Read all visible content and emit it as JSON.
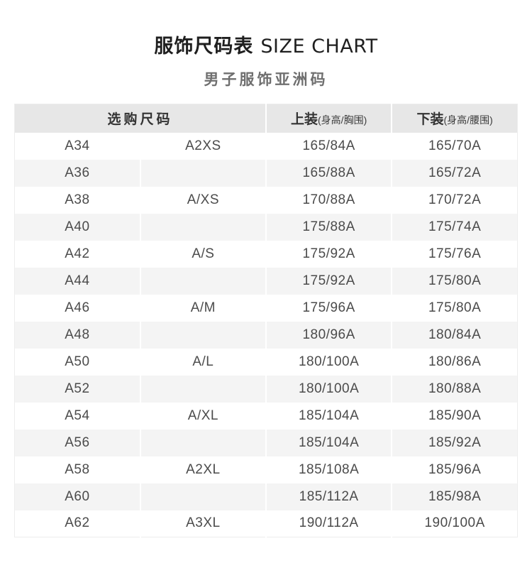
{
  "title": {
    "zh": "服饰尺码表",
    "en": "SIZE CHART"
  },
  "subtitle": "男子服饰亚洲码",
  "table": {
    "header": {
      "size_label": "选购尺码",
      "top_label": "上装",
      "top_sub": "(身高/胸围)",
      "bottom_label": "下装",
      "bottom_sub": "(身高/腰围)"
    },
    "rows": [
      [
        "A34",
        "A2XS",
        "165/84A",
        "165/70A"
      ],
      [
        "A36",
        "",
        "165/88A",
        "165/72A"
      ],
      [
        "A38",
        "A/XS",
        "170/88A",
        "170/72A"
      ],
      [
        "A40",
        "",
        "175/88A",
        "175/74A"
      ],
      [
        "A42",
        "A/S",
        "175/92A",
        "175/76A"
      ],
      [
        "A44",
        "",
        "175/92A",
        "175/80A"
      ],
      [
        "A46",
        "A/M",
        "175/96A",
        "175/80A"
      ],
      [
        "A48",
        "",
        "180/96A",
        "180/84A"
      ],
      [
        "A50",
        "A/L",
        "180/100A",
        "180/86A"
      ],
      [
        "A52",
        "",
        "180/100A",
        "180/88A"
      ],
      [
        "A54",
        "A/XL",
        "185/104A",
        "185/90A"
      ],
      [
        "A56",
        "",
        "185/104A",
        "185/92A"
      ],
      [
        "A58",
        "A2XL",
        "185/108A",
        "185/96A"
      ],
      [
        "A60",
        "",
        "185/112A",
        "185/98A"
      ],
      [
        "A62",
        "A3XL",
        "190/112A",
        "190/100A"
      ]
    ]
  },
  "colors": {
    "header_bg": "#e7e7e7",
    "alt_row_bg": "#f4f4f4",
    "title_color": "#1f1f1f",
    "subtitle_color": "#6f6f6f",
    "header_text": "#333333",
    "body_text": "#4b4b4b",
    "column_divider": "#ffffff"
  }
}
